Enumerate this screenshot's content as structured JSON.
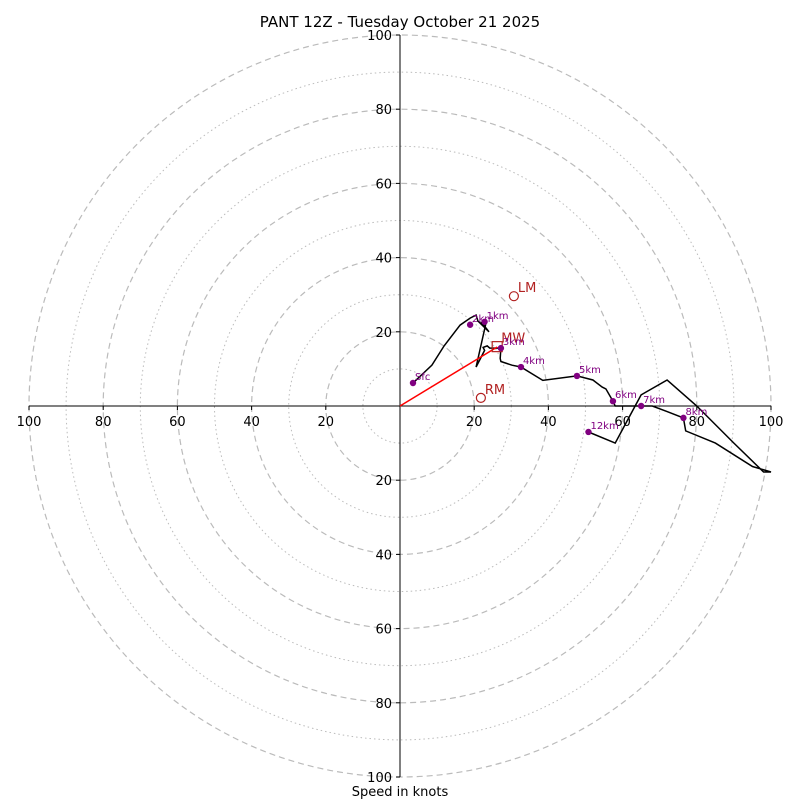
{
  "chart_data": {
    "type": "line",
    "title": "PANT 12Z - Tuesday October 21 2025",
    "xlabel": "Speed in knots",
    "ylabel": "",
    "xlim": [
      -100,
      100
    ],
    "ylim": [
      -100,
      100
    ],
    "rings_dashed": [
      10,
      20,
      30,
      40,
      50,
      60,
      70,
      80,
      90,
      100
    ],
    "x_ticks": [
      {
        "value": -100,
        "label": "100"
      },
      {
        "value": -80,
        "label": "80"
      },
      {
        "value": -60,
        "label": "60"
      },
      {
        "value": -40,
        "label": "40"
      },
      {
        "value": -20,
        "label": "20"
      },
      {
        "value": 20,
        "label": "20"
      },
      {
        "value": 40,
        "label": "40"
      },
      {
        "value": 60,
        "label": "60"
      },
      {
        "value": 80,
        "label": "80"
      },
      {
        "value": 100,
        "label": "100"
      }
    ],
    "y_ticks": [
      {
        "value": 100,
        "label": "100"
      },
      {
        "value": 80,
        "label": "80"
      },
      {
        "value": 60,
        "label": "60"
      },
      {
        "value": 40,
        "label": "40"
      },
      {
        "value": 20,
        "label": "20"
      },
      {
        "value": -20,
        "label": "20"
      },
      {
        "value": -40,
        "label": "40"
      },
      {
        "value": -60,
        "label": "60"
      },
      {
        "value": -80,
        "label": "80"
      },
      {
        "value": -100,
        "label": "100"
      }
    ],
    "hodograph": {
      "color": "#000000",
      "u": [
        3.5,
        8.6,
        11.9,
        16.2,
        18.9,
        20.5,
        21.0,
        24.0,
        22.0,
        23.2,
        20.5,
        22.8,
        22.4,
        23.5,
        24.2,
        26.4,
        27.2,
        27.0,
        27.2,
        30.2,
        32.6,
        38.5,
        47.7,
        52.0,
        54.5,
        55.5,
        57.4,
        58.0,
        62.0,
        65.0,
        68.0,
        72.0,
        76.4,
        77.0,
        85.0,
        95.0,
        100.0,
        98.0,
        90.0,
        80.0,
        72.0,
        65.0,
        58.0,
        50.8
      ],
      "v": [
        6.2,
        11.0,
        16.2,
        21.8,
        23.7,
        24.5,
        22.9,
        20.0,
        22.5,
        22.5,
        10.5,
        15.0,
        15.8,
        16.2,
        15.6,
        15.6,
        15.6,
        12.8,
        12.0,
        11.0,
        10.5,
        6.9,
        8.1,
        7.0,
        5.1,
        4.6,
        1.3,
        0.0,
        0.0,
        0.0,
        0.0,
        -1.5,
        -3.2,
        -6.7,
        -10.0,
        -16.3,
        -17.8,
        -17.8,
        -10.0,
        0.0,
        7.0,
        3.0,
        -10.0,
        -7.0
      ]
    },
    "height_markers": [
      {
        "label": "Sfc",
        "u": 3.5,
        "v": 6.2
      },
      {
        "label": "1km",
        "u": 22.8,
        "v": 22.7
      },
      {
        "label": "2km",
        "u": 18.9,
        "v": 21.9
      },
      {
        "label": "3km",
        "u": 27.2,
        "v": 15.6
      },
      {
        "label": "4km",
        "u": 32.6,
        "v": 10.5
      },
      {
        "label": "5km",
        "u": 47.7,
        "v": 8.1
      },
      {
        "label": "6km",
        "u": 57.4,
        "v": 1.3
      },
      {
        "label": "7km",
        "u": 65.0,
        "v": 0.0
      },
      {
        "label": "8km",
        "u": 76.4,
        "v": -3.2
      },
      {
        "label": "12km",
        "u": 50.8,
        "v": -7.0
      }
    ],
    "storm_motion": [
      {
        "label": "LM",
        "u": 30.7,
        "v": 29.6,
        "marker": "circle"
      },
      {
        "label": "RM",
        "u": 21.8,
        "v": 2.2,
        "marker": "circle"
      },
      {
        "label": "MW",
        "u": 26.2,
        "v": 16.0,
        "marker": "square"
      }
    ],
    "shear_vector": {
      "color": "#ff0000",
      "u": 26.2,
      "v": 15.9
    },
    "colors": {
      "markers": "#800080",
      "storm_motion": "#b22222",
      "grid": "#bbbbbb"
    }
  }
}
